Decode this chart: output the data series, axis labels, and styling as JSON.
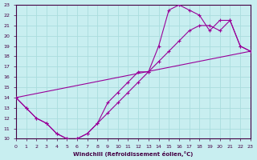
{
  "xlabel": "Windchill (Refroidissement éolien,°C)",
  "xlim": [
    0,
    23
  ],
  "ylim": [
    10,
    23
  ],
  "xticks": [
    0,
    1,
    2,
    3,
    4,
    5,
    6,
    7,
    8,
    9,
    10,
    11,
    12,
    13,
    14,
    15,
    16,
    17,
    18,
    19,
    20,
    21,
    22,
    23
  ],
  "yticks": [
    10,
    11,
    12,
    13,
    14,
    15,
    16,
    17,
    18,
    19,
    20,
    21,
    22,
    23
  ],
  "line_color": "#990099",
  "background_color": "#c8eef0",
  "grid_color": "#aadddd",
  "curve1_x": [
    0,
    1,
    2,
    3,
    4,
    5,
    6,
    7,
    8,
    9,
    10,
    11,
    12,
    13,
    14,
    15,
    16,
    17,
    18,
    19,
    20,
    21,
    22,
    23
  ],
  "curve1_y": [
    14,
    13,
    12,
    11.5,
    10.5,
    10,
    10,
    10.5,
    11.5,
    12.5,
    13.5,
    14.5,
    15.5,
    16.5,
    17.5,
    18.5,
    19.5,
    20.5,
    21.0,
    21.0,
    20.5,
    21.5,
    19.0,
    18.5
  ],
  "curve2_x": [
    0,
    1,
    2,
    3,
    4,
    5,
    6,
    7,
    8,
    9,
    10,
    11,
    12,
    13,
    14,
    15,
    16,
    17,
    18,
    19,
    20,
    21,
    22,
    23
  ],
  "curve2_y": [
    14,
    13,
    12,
    11.5,
    10.5,
    10,
    10,
    10.5,
    11.5,
    13.5,
    14.5,
    15.5,
    16.5,
    16.5,
    19.0,
    22.5,
    23.0,
    22.5,
    22.0,
    20.5,
    21.5,
    21.5,
    19.0,
    18.5
  ],
  "curve3_x": [
    0,
    23
  ],
  "curve3_y": [
    14,
    18.5
  ]
}
